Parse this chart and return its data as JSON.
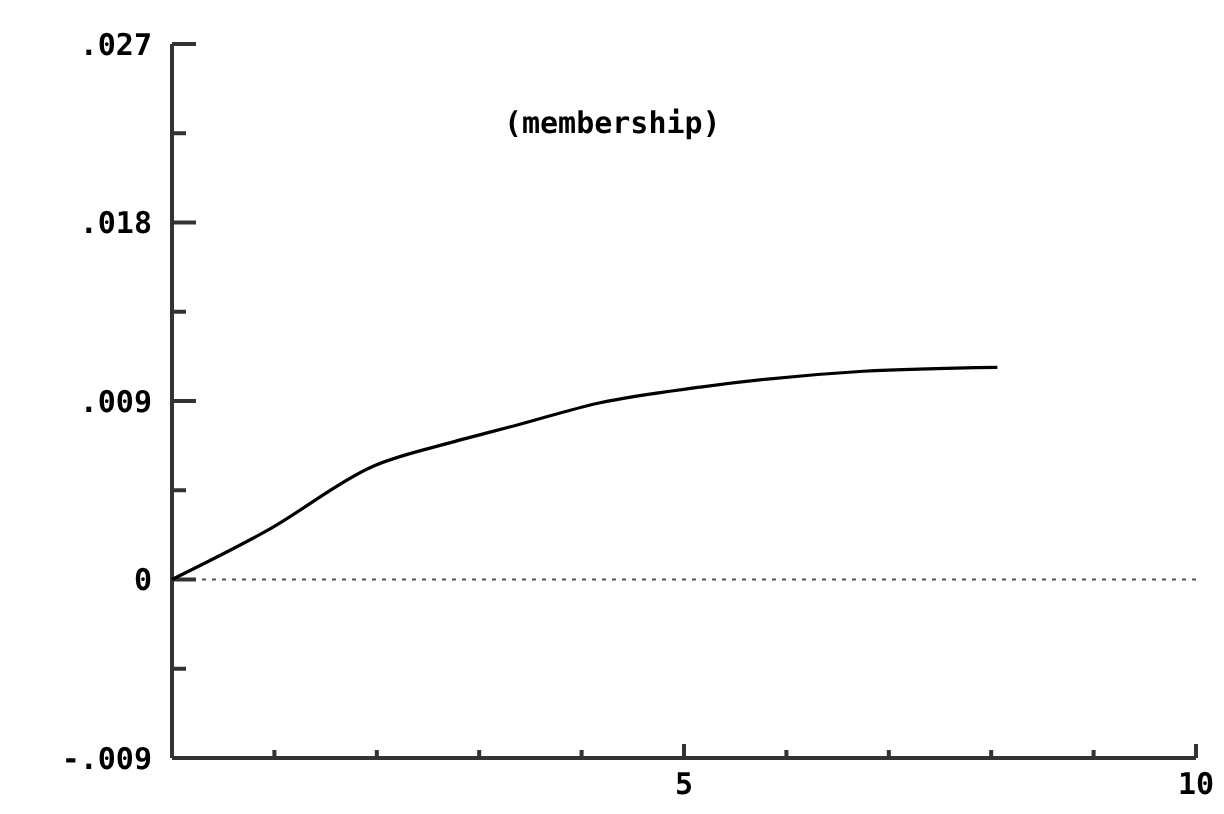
{
  "chart_data": {
    "type": "line",
    "annotations": [
      "(membership)"
    ],
    "x": [
      0,
      0.94,
      1.96,
      2.72,
      3.38,
      4.17,
      5.16,
      6.75,
      8.06
    ],
    "series": [
      {
        "color": "#000000",
        "values": [
          0,
          0.0025,
          0.0057,
          0.0069,
          0.0078,
          0.0089,
          0.0097,
          0.0105,
          0.0107
        ]
      }
    ],
    "xlim": [
      0,
      10
    ],
    "xticks": [
      {
        "value": 0,
        "label": null
      },
      {
        "value": 1,
        "label": null
      },
      {
        "value": 2,
        "label": null
      },
      {
        "value": 3,
        "label": null
      },
      {
        "value": 4,
        "label": null
      },
      5,
      {
        "value": 6,
        "label": null
      },
      {
        "value": 7,
        "label": null
      },
      {
        "value": 8,
        "label": null
      },
      {
        "value": 9,
        "label": null
      },
      10
    ],
    "ylim": [
      -0.009,
      0.027
    ],
    "yticks": [
      {
        "value": -0.009,
        "label": "-.009"
      },
      {
        "value": -0.0045,
        "label": null
      },
      {
        "value": 0,
        "label": "0"
      },
      {
        "value": 0.0045,
        "label": null
      },
      {
        "value": 0.009,
        "label": ".009"
      },
      {
        "value": 0.0135,
        "label": null
      },
      {
        "value": 0.018,
        "label": ".018"
      },
      {
        "value": 0.0225,
        "label": null
      },
      {
        "value": 0.027,
        "label": ".027"
      }
    ],
    "ref_lines": [
      {
        "axis": "y",
        "value": 0,
        "line_style": "dotted",
        "color": "#555555"
      }
    ],
    "line_style": "solid",
    "marker": "none",
    "grid": false
  }
}
